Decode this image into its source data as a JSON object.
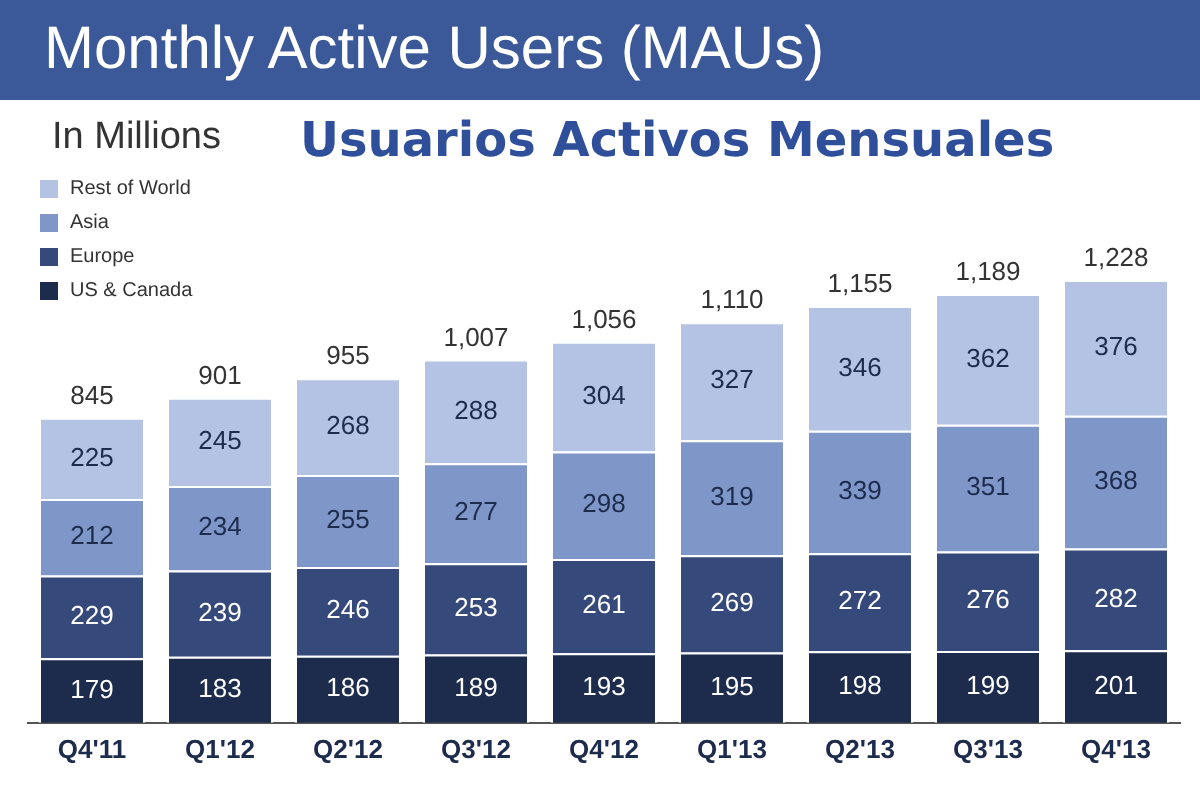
{
  "chart_data": {
    "type": "bar",
    "stacked": true,
    "title": "Monthly Active Users (MAUs)",
    "subtitle": "In Millions",
    "annotations": [
      "Usuarios Activos Mensuales"
    ],
    "categories": [
      "Q4'11",
      "Q1'12",
      "Q2'12",
      "Q3'12",
      "Q4'12",
      "Q1'13",
      "Q2'13",
      "Q3'13",
      "Q4'13"
    ],
    "series": [
      {
        "name": "US & Canada",
        "color": "#1d2b4c",
        "values": [
          179,
          183,
          186,
          189,
          193,
          195,
          198,
          199,
          201
        ]
      },
      {
        "name": "Europe",
        "color": "#36497b",
        "values": [
          229,
          239,
          246,
          253,
          261,
          269,
          272,
          276,
          282
        ]
      },
      {
        "name": "Asia",
        "color": "#7f96c9",
        "values": [
          212,
          234,
          255,
          277,
          298,
          319,
          339,
          351,
          368
        ]
      },
      {
        "name": "Rest of World",
        "color": "#b4c3e4",
        "values": [
          225,
          245,
          268,
          288,
          304,
          327,
          346,
          362,
          376
        ]
      }
    ],
    "totals": [
      "845",
      "901",
      "955",
      "1,007",
      "1,056",
      "1,110",
      "1,155",
      "1,189",
      "1,228"
    ],
    "data_labels": true,
    "legend": "top left",
    "grid": false
  }
}
